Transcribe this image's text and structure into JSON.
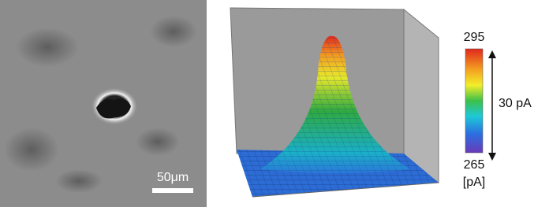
{
  "micrograph": {
    "scale_bar": "50μm"
  },
  "colorbar": {
    "max_label": "295",
    "min_label": "265",
    "unit": "[pA]",
    "range_label": "30 pA"
  }
}
